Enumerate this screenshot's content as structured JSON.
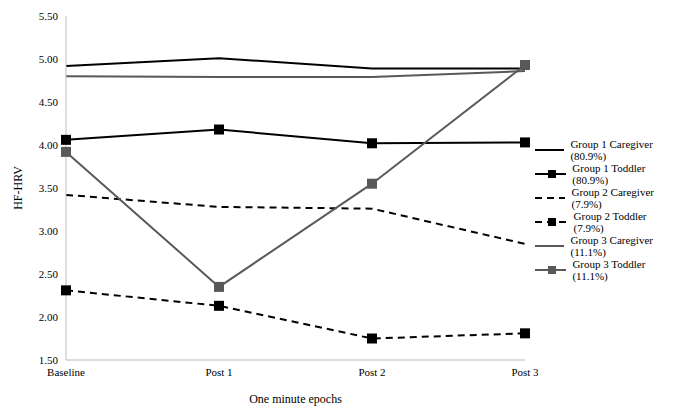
{
  "chart_data": {
    "type": "line",
    "x_label": "One minute epochs",
    "y_label": "HF-HRV",
    "categories": [
      "Baseline",
      "Post 1",
      "Post 2",
      "Post 3"
    ],
    "ylim": [
      1.5,
      5.5
    ],
    "yticks": [
      {
        "value": 1.5,
        "label": "1.50"
      },
      {
        "value": 2,
        "label": "2.00"
      },
      {
        "value": 2.5,
        "label": "2.50"
      },
      {
        "value": 3,
        "label": "3.00"
      },
      {
        "value": 3.5,
        "label": "3.50"
      },
      {
        "value": 4,
        "label": "4.00"
      },
      {
        "value": 4.5,
        "label": "4.50"
      },
      {
        "value": 5,
        "label": "5.00"
      },
      {
        "value": 5.5,
        "label": "5.50"
      }
    ],
    "grid": false,
    "legend": "right",
    "series": [
      {
        "name": "Group 1 Caregiver (80.9%)",
        "color": "#000000",
        "line_style": "solid",
        "marker": "none",
        "values": [
          4.92,
          5.01,
          4.89,
          4.89
        ]
      },
      {
        "name": "Group 1 Toddler (80.9%)",
        "color": "#000000",
        "line_style": "solid",
        "marker": "square",
        "values": [
          4.06,
          4.18,
          4.02,
          4.03
        ]
      },
      {
        "name": "Group 2  Caregiver (7.9%)",
        "color": "#000000",
        "line_style": "dashed",
        "marker": "none",
        "values": [
          3.42,
          3.28,
          3.26,
          2.85
        ]
      },
      {
        "name": "Group 2 Toddler (7.9%)",
        "color": "#000000",
        "line_style": "dashed",
        "marker": "square",
        "values": [
          2.31,
          2.13,
          1.75,
          1.81
        ]
      },
      {
        "name": "Group 3 Caregiver (11.1%)",
        "color": "#595959",
        "line_style": "solid",
        "marker": "none",
        "values": [
          4.8,
          4.79,
          4.79,
          4.86
        ]
      },
      {
        "name": "Group 3 Toddler (11.1%)",
        "color": "#595959",
        "line_style": "solid",
        "marker": "square",
        "values": [
          3.92,
          2.35,
          3.55,
          4.93
        ]
      }
    ]
  }
}
